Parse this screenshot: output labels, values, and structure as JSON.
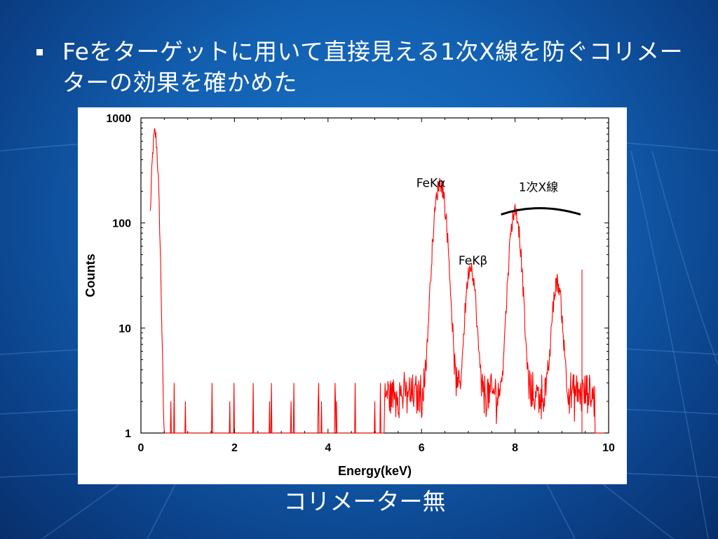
{
  "slide": {
    "title": "Feをターゲットに用いて直接見える1次X線を防ぐコリメーターの効果を確かめた",
    "caption": "コリメーター無"
  },
  "colors": {
    "background": "#125fb0",
    "series": "#ff0000",
    "text": "#ffffff"
  },
  "chart_data": {
    "type": "line",
    "xlabel": "Energy(keV)",
    "ylabel": "Counts",
    "xlim": [
      0,
      10
    ],
    "ylim": [
      1,
      1000
    ],
    "yscale": "log",
    "grid": false,
    "x_ticks": [
      "0",
      "2",
      "4",
      "6",
      "8",
      "10"
    ],
    "y_ticks": [
      "1",
      "10",
      "100",
      "1000"
    ],
    "series": [
      {
        "color": "#ff0000",
        "peaks": [
          {
            "x": 0.3,
            "y": 700
          },
          {
            "x": 6.4,
            "y": 240
          },
          {
            "x": 7.05,
            "y": 37
          },
          {
            "x": 8.0,
            "y": 130
          },
          {
            "x": 8.9,
            "y": 25
          }
        ]
      }
    ],
    "annotations": [
      {
        "text": "FeKα",
        "x": 6.2,
        "y": 220
      },
      {
        "text": "FeKβ",
        "x": 7.1,
        "y": 40
      },
      {
        "text": "1次X線",
        "x": 8.5,
        "y": 200
      }
    ]
  }
}
